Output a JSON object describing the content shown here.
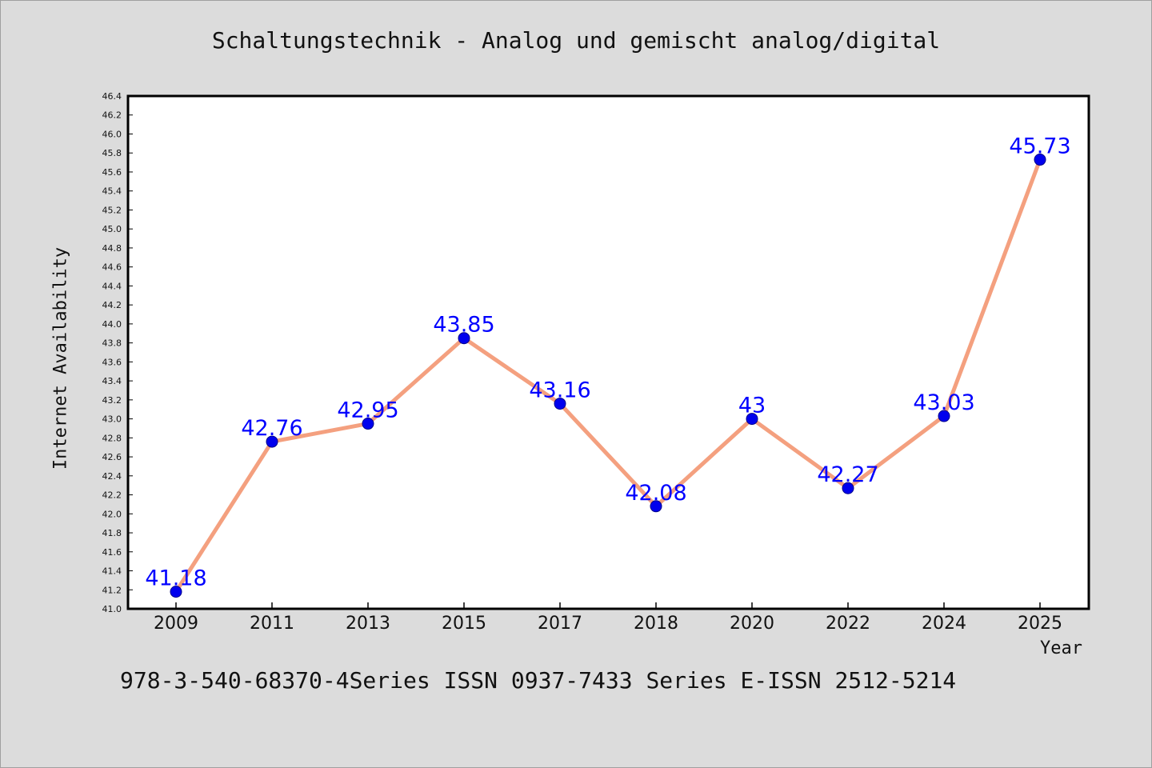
{
  "page": {
    "title": "Schaltungstechnik - Analog und gemischt analog/digital",
    "footer": "978-3-540-68370-4Series ISSN 0937-7433 Series E-ISSN 2512-5214"
  },
  "chart_data": {
    "type": "line",
    "title": "Schaltungstechnik - Analog und gemischt analog/digital",
    "xlabel": "Year",
    "ylabel": "Internet Availability",
    "categories": [
      "2009",
      "2011",
      "2013",
      "2015",
      "2017",
      "2018",
      "2020",
      "2022",
      "2024",
      "2025"
    ],
    "series": [
      {
        "values": [
          41.18,
          42.76,
          42.95,
          43.85,
          43.16,
          42.08,
          43,
          42.27,
          43.03,
          45.73
        ],
        "data_labels": [
          "41.18",
          "42.76",
          "42.95",
          "43.85",
          "43.16",
          "42.08",
          "43",
          "42.27",
          "43.03",
          "45.73"
        ]
      }
    ],
    "ylim": [
      41.0,
      46.4
    ],
    "yticks": [
      "41.0",
      "41.2",
      "41.4",
      "41.6",
      "41.8",
      "42.0",
      "42.2",
      "42.4",
      "42.6",
      "42.8",
      "43.0",
      "43.2",
      "43.4",
      "43.6",
      "43.8",
      "44.0",
      "44.2",
      "44.4",
      "44.6",
      "44.8",
      "45.0",
      "45.2",
      "45.4",
      "45.6",
      "45.8",
      "46.0",
      "46.2",
      "46.4"
    ],
    "grid": false,
    "legend": "none",
    "colors": {
      "line": "#f4a07f",
      "marker": "#0000ee",
      "label": "#0000ff",
      "plot_bg": "#ffffff",
      "page_bg": "#dcdcdc"
    }
  }
}
